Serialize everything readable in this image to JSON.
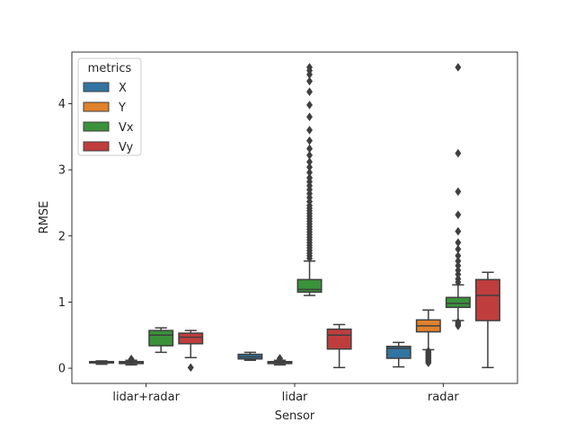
{
  "chart_data": {
    "type": "box",
    "title": "",
    "xlabel": "Sensor",
    "ylabel": "RMSE",
    "categories": [
      "lidar+radar",
      "lidar",
      "radar"
    ],
    "yticks": [
      0,
      1,
      2,
      3,
      4
    ],
    "ylim": [
      -0.23,
      4.78
    ],
    "grid": false,
    "legend": {
      "title": "metrics",
      "position": "top-left"
    },
    "series": [
      {
        "name": "X",
        "color": "#3274a1",
        "boxes": [
          {
            "whisker_low": 0.06,
            "q1": 0.08,
            "median": 0.09,
            "q3": 0.1,
            "whisker_high": 0.11,
            "outliers": []
          },
          {
            "whisker_low": 0.12,
            "q1": 0.14,
            "median": 0.17,
            "q3": 0.21,
            "whisker_high": 0.24,
            "outliers": []
          },
          {
            "whisker_low": 0.02,
            "q1": 0.15,
            "median": 0.3,
            "q3": 0.33,
            "whisker_high": 0.39,
            "outliers": []
          }
        ]
      },
      {
        "name": "Y",
        "color": "#e1812c",
        "boxes": [
          {
            "whisker_low": 0.05,
            "q1": 0.07,
            "median": 0.08,
            "q3": 0.1,
            "whisker_high": 0.12,
            "outliers": [
              0.13,
              0.14
            ]
          },
          {
            "whisker_low": 0.05,
            "q1": 0.07,
            "median": 0.08,
            "q3": 0.1,
            "whisker_high": 0.12,
            "outliers": [
              0.14,
              0.15
            ]
          },
          {
            "whisker_low": 0.28,
            "q1": 0.55,
            "median": 0.64,
            "q3": 0.73,
            "whisker_high": 0.88,
            "outliers": [
              0.08,
              0.1,
              0.12,
              0.14,
              0.16,
              0.18,
              0.2,
              0.22,
              0.24,
              0.26
            ]
          }
        ]
      },
      {
        "name": "Vx",
        "color": "#3a923a",
        "boxes": [
          {
            "whisker_low": 0.24,
            "q1": 0.34,
            "median": 0.5,
            "q3": 0.57,
            "whisker_high": 0.61,
            "outliers": []
          },
          {
            "whisker_low": 1.1,
            "q1": 1.15,
            "median": 1.19,
            "q3": 1.34,
            "whisker_high": 1.62,
            "outliers": [
              1.66,
              1.7,
              1.74,
              1.78,
              1.82,
              1.86,
              1.9,
              1.94,
              1.98,
              2.02,
              2.06,
              2.1,
              2.14,
              2.18,
              2.22,
              2.26,
              2.3,
              2.34,
              2.38,
              2.42,
              2.46,
              2.52,
              2.58,
              2.64,
              2.7,
              2.76,
              2.82,
              2.88,
              2.96,
              3.04,
              3.12,
              3.22,
              3.32,
              3.44,
              3.6,
              3.8,
              3.98,
              4.18,
              4.34,
              4.44,
              4.5,
              4.55
            ]
          },
          {
            "whisker_low": 0.72,
            "q1": 0.92,
            "median": 0.98,
            "q3": 1.07,
            "whisker_high": 1.26,
            "outliers": [
              0.64,
              0.66,
              0.68,
              0.7,
              1.3,
              1.35,
              1.42,
              1.48,
              1.55,
              1.62,
              1.7,
              1.8,
              1.9,
              2.07,
              2.32,
              2.67,
              3.25,
              4.55
            ]
          }
        ]
      },
      {
        "name": "Vy",
        "color": "#c03d3e",
        "boxes": [
          {
            "whisker_low": 0.16,
            "q1": 0.37,
            "median": 0.47,
            "q3": 0.53,
            "whisker_high": 0.57,
            "outliers": [
              0.01
            ]
          },
          {
            "whisker_low": 0.01,
            "q1": 0.29,
            "median": 0.5,
            "q3": 0.59,
            "whisker_high": 0.66,
            "outliers": []
          },
          {
            "whisker_low": 0.01,
            "q1": 0.72,
            "median": 1.1,
            "q3": 1.34,
            "whisker_high": 1.45,
            "outliers": []
          }
        ]
      }
    ]
  }
}
